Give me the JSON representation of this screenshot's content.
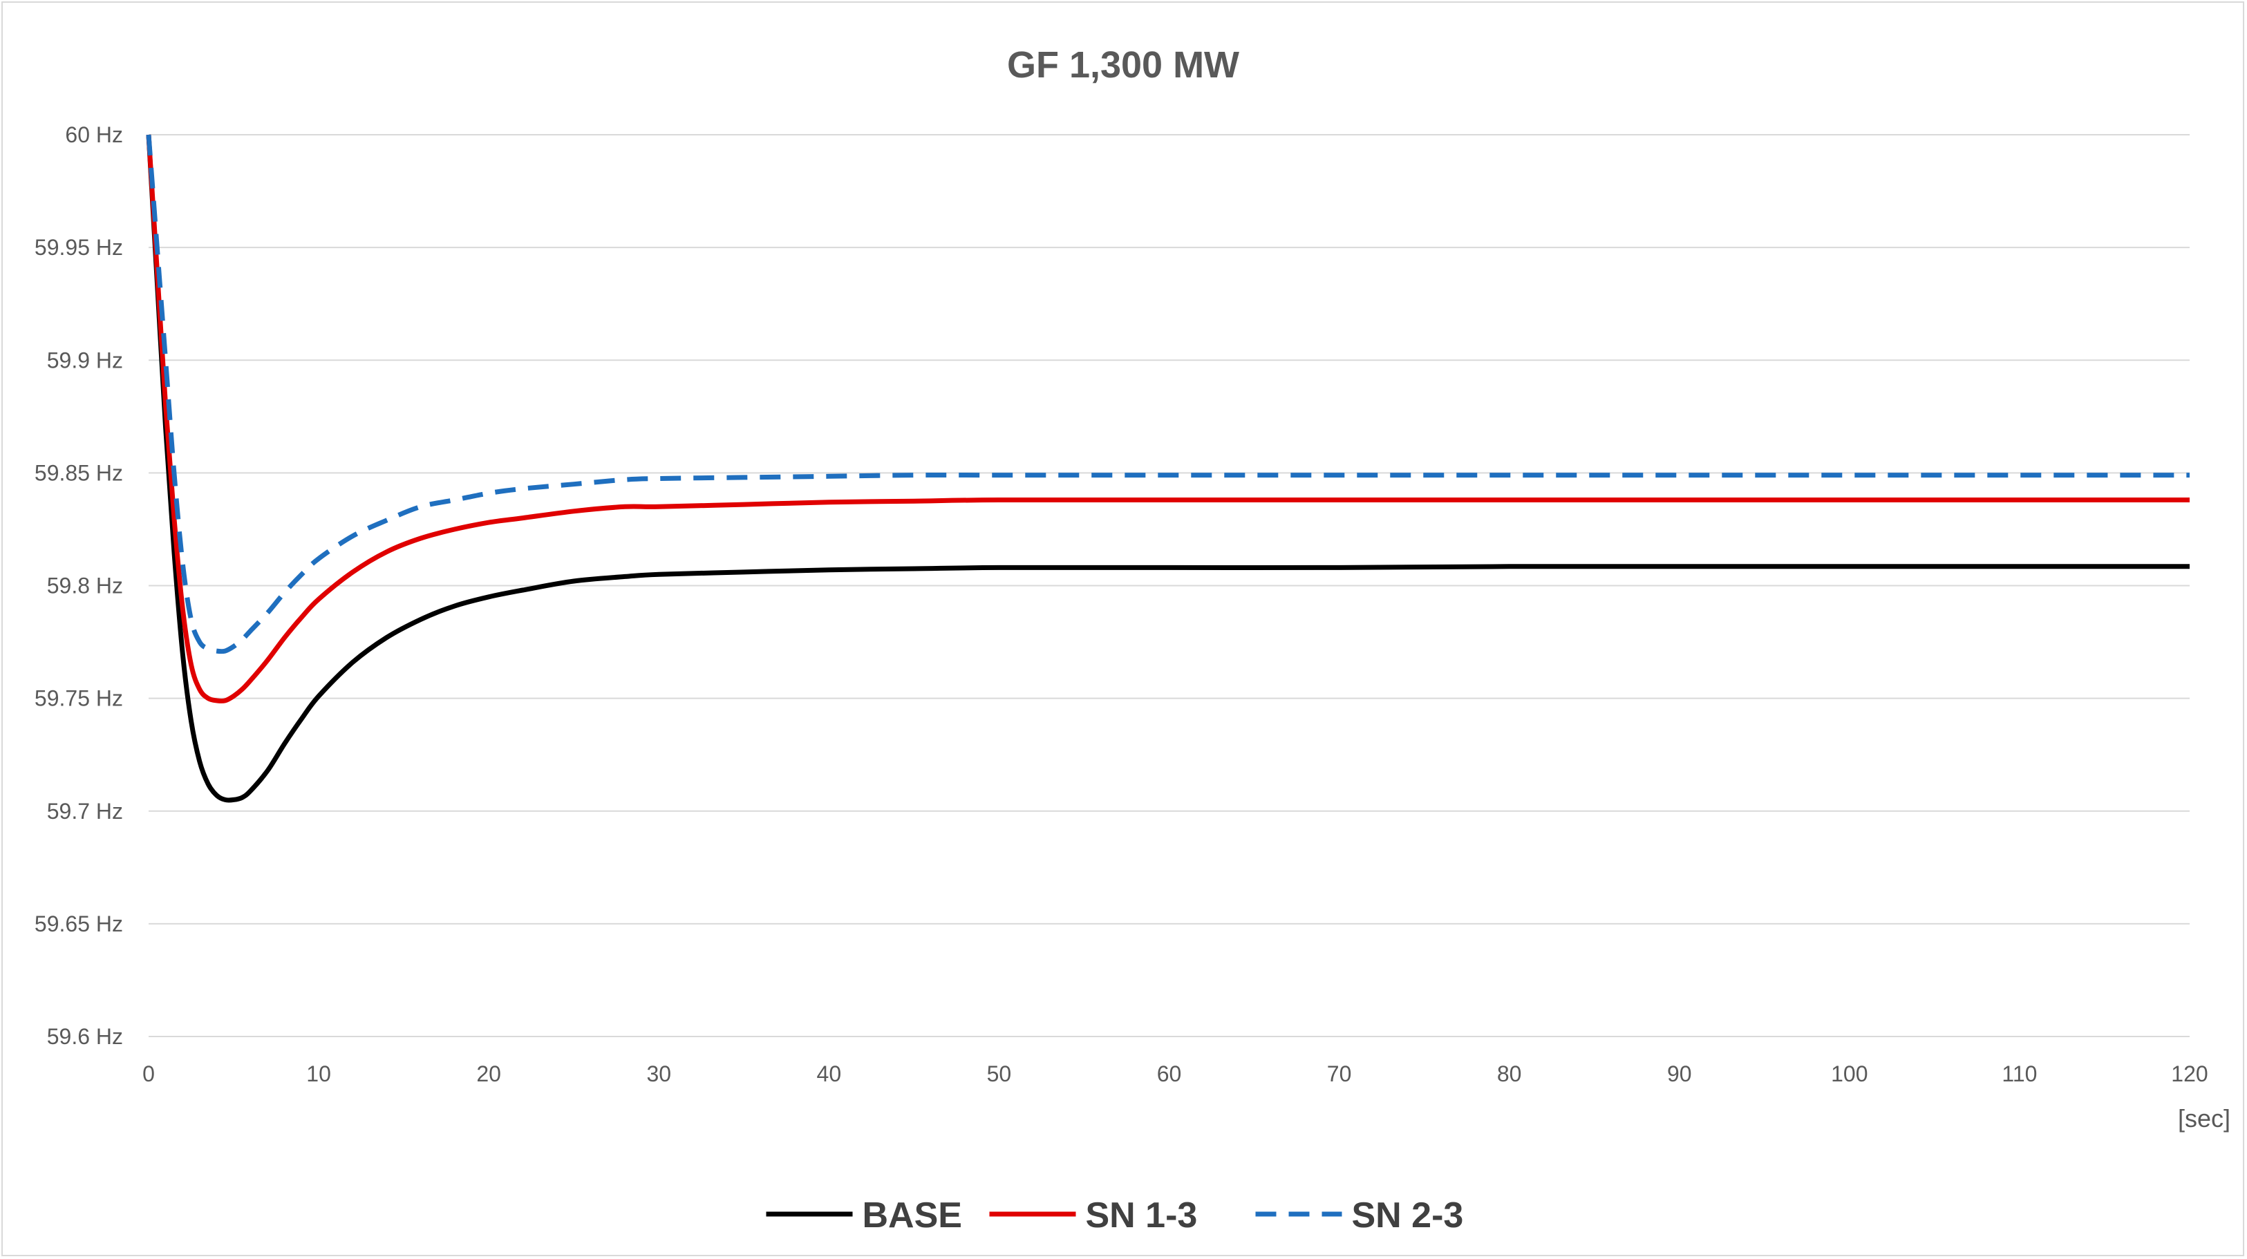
{
  "chart_data": {
    "type": "line",
    "title": "GF 1,300 MW",
    "xlabel": "",
    "ylabel": "",
    "x_unit": "[sec]",
    "xlim": [
      0,
      120
    ],
    "ylim": [
      59.6,
      60
    ],
    "x_ticks": [
      "0",
      "10",
      "20",
      "30",
      "40",
      "50",
      "60",
      "70",
      "80",
      "90",
      "100",
      "110",
      "120"
    ],
    "y_ticks": [
      "59.6 Hz",
      "59.65 Hz",
      "59.7 Hz",
      "59.75 Hz",
      "59.8 Hz",
      "59.85 Hz",
      "59.9 Hz",
      "59.95 Hz",
      "60 Hz"
    ],
    "grid": true,
    "legend_position": "bottom",
    "series": [
      {
        "name": "BASE",
        "color": "#000000",
        "dash": "solid",
        "x": [
          0,
          0.5,
          1,
          1.5,
          2,
          2.5,
          3,
          3.5,
          4,
          4.5,
          5,
          5.5,
          6,
          7,
          8,
          9,
          10,
          12,
          14,
          16,
          18,
          20,
          22,
          25,
          28,
          30,
          35,
          40,
          45,
          50,
          60,
          70,
          80,
          90,
          100,
          110,
          120
        ],
        "y": [
          60.0,
          59.935,
          59.87,
          59.815,
          59.77,
          59.74,
          59.722,
          59.712,
          59.707,
          59.705,
          59.705,
          59.706,
          59.709,
          59.718,
          59.73,
          59.741,
          59.751,
          59.766,
          59.777,
          59.785,
          59.791,
          59.795,
          59.798,
          59.802,
          59.804,
          59.805,
          59.806,
          59.807,
          59.8075,
          59.808,
          59.808,
          59.808,
          59.8085,
          59.8085,
          59.8085,
          59.8085,
          59.8085
        ]
      },
      {
        "name": "SN 1-3",
        "color": "#e00000",
        "dash": "solid",
        "x": [
          0,
          0.5,
          1,
          1.5,
          2,
          2.5,
          3,
          3.5,
          4,
          4.5,
          5,
          5.5,
          6,
          7,
          8,
          9,
          10,
          12,
          14,
          16,
          18,
          20,
          22,
          25,
          28,
          30,
          35,
          40,
          45,
          50,
          60,
          70,
          80,
          90,
          100,
          110,
          120
        ],
        "y": [
          60.0,
          59.94,
          59.88,
          59.83,
          59.79,
          59.765,
          59.754,
          59.75,
          59.749,
          59.749,
          59.751,
          59.754,
          59.758,
          59.767,
          59.777,
          59.786,
          59.794,
          59.806,
          59.815,
          59.821,
          59.825,
          59.828,
          59.83,
          59.833,
          59.835,
          59.835,
          59.836,
          59.837,
          59.8375,
          59.838,
          59.838,
          59.838,
          59.838,
          59.838,
          59.838,
          59.838,
          59.838
        ]
      },
      {
        "name": "SN 2-3",
        "color": "#1f6fbf",
        "dash": "dashed",
        "x": [
          0,
          0.5,
          1,
          1.5,
          2,
          2.5,
          3,
          3.5,
          4,
          4.5,
          5,
          5.5,
          6,
          7,
          8,
          9,
          10,
          12,
          14,
          16,
          18,
          20,
          22,
          25,
          28,
          30,
          35,
          40,
          45,
          50,
          60,
          70,
          80,
          90,
          100,
          110,
          120
        ],
        "y": [
          60.0,
          59.95,
          59.9,
          59.85,
          59.81,
          59.785,
          59.775,
          59.772,
          59.771,
          59.771,
          59.773,
          59.776,
          59.78,
          59.788,
          59.797,
          59.805,
          59.812,
          59.822,
          59.829,
          59.835,
          59.838,
          59.841,
          59.843,
          59.845,
          59.847,
          59.8475,
          59.848,
          59.8485,
          59.849,
          59.849,
          59.849,
          59.849,
          59.849,
          59.849,
          59.849,
          59.849,
          59.849
        ]
      }
    ]
  }
}
